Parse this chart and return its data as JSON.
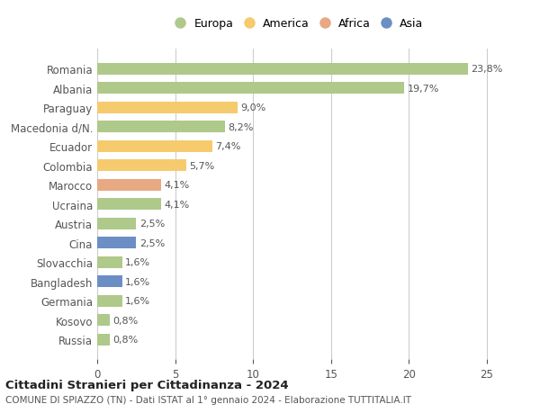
{
  "countries": [
    "Romania",
    "Albania",
    "Paraguay",
    "Macedonia d/N.",
    "Ecuador",
    "Colombia",
    "Marocco",
    "Ucraina",
    "Austria",
    "Cina",
    "Slovacchia",
    "Bangladesh",
    "Germania",
    "Kosovo",
    "Russia"
  ],
  "values": [
    23.8,
    19.7,
    9.0,
    8.2,
    7.4,
    5.7,
    4.1,
    4.1,
    2.5,
    2.5,
    1.6,
    1.6,
    1.6,
    0.8,
    0.8
  ],
  "labels": [
    "23,8%",
    "19,7%",
    "9,0%",
    "8,2%",
    "7,4%",
    "5,7%",
    "4,1%",
    "4,1%",
    "2,5%",
    "2,5%",
    "1,6%",
    "1,6%",
    "1,6%",
    "0,8%",
    "0,8%"
  ],
  "continents": [
    "Europa",
    "Europa",
    "America",
    "Europa",
    "America",
    "America",
    "Africa",
    "Europa",
    "Europa",
    "Asia",
    "Europa",
    "Asia",
    "Europa",
    "Europa",
    "Europa"
  ],
  "colors": {
    "Europa": "#aec98a",
    "America": "#f5cb6e",
    "Africa": "#e8a882",
    "Asia": "#6b8ec4"
  },
  "legend_order": [
    "Europa",
    "America",
    "Africa",
    "Asia"
  ],
  "title1": "Cittadini Stranieri per Cittadinanza - 2024",
  "title2": "COMUNE DI SPIAZZO (TN) - Dati ISTAT al 1° gennaio 2024 - Elaborazione TUTTITALIA.IT",
  "xlim": [
    0,
    26
  ],
  "xticks": [
    0,
    5,
    10,
    15,
    20,
    25
  ],
  "background_color": "#ffffff",
  "grid_color": "#cccccc"
}
